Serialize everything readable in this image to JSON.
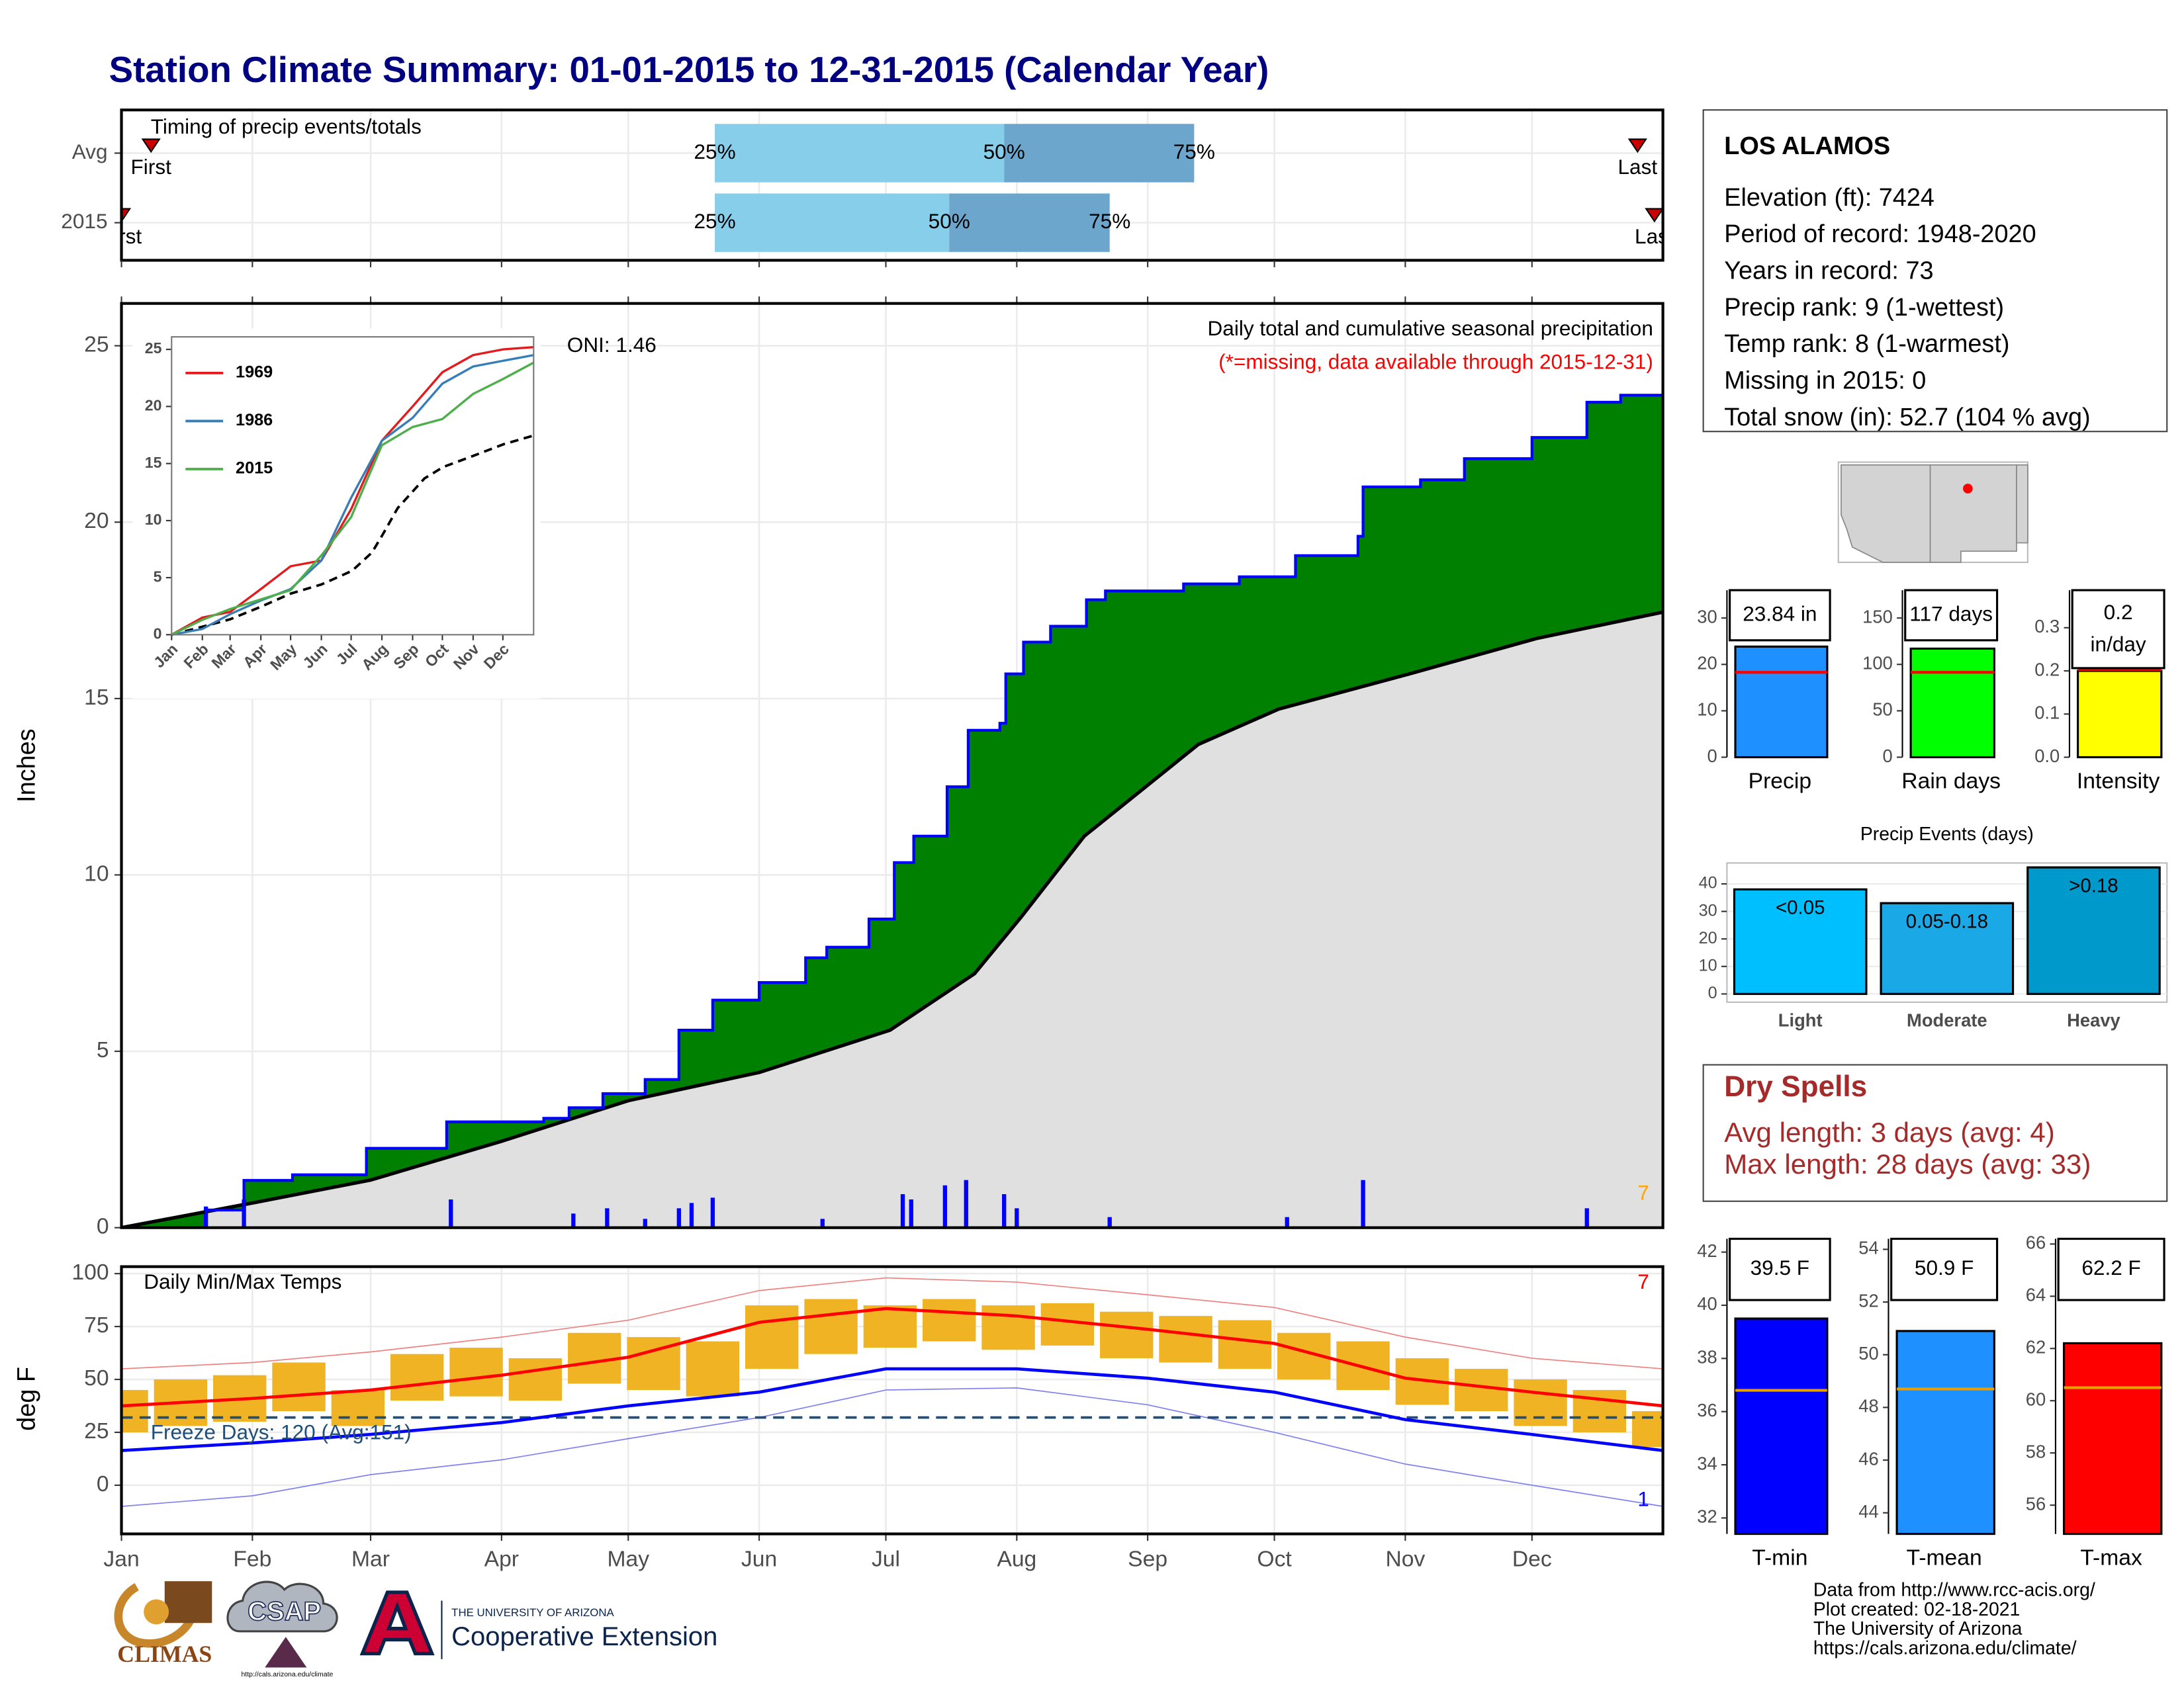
{
  "title": "Station Climate Summary: 01-01-2015 to 12-31-2015 (Calendar Year)",
  "info": {
    "station": "LOS ALAMOS",
    "lines": [
      "Elevation (ft): 7424",
      "Period of record: 1948-2020",
      "Years in record: 73",
      "Precip rank: 9 (1-wettest)",
      "Temp rank: 8 (1-warmest)",
      "Missing in 2015: 0",
      "Total snow (in): 52.7 (104 % avg)"
    ]
  },
  "dry_spells": {
    "title": "Dry Spells",
    "lines": [
      "Avg length: 3 days (avg: 4)",
      "Max length: 28 days (avg: 33)"
    ]
  },
  "footer": [
    "Data from http://www.rcc-acis.org/",
    "Plot created: 02-18-2021",
    "The University of Arizona",
    "https://cals.arizona.edu/climate/"
  ],
  "logos": {
    "climas": "CLIMAS",
    "csap": "CSAP",
    "csap_url": "http://cals.arizona.edu/climate",
    "university": "THE UNIVERSITY OF ARIZONA",
    "extension": "Cooperative Extension"
  },
  "chart_data": [
    {
      "type": "timing",
      "title": "Timing of precip events/totals",
      "xlim": [
        0,
        365
      ],
      "labels": {
        "first": "First",
        "last": "Last",
        "p25": "25%",
        "p50": "50%",
        "p75": "75%"
      },
      "colors": {
        "low": "#87ceeb",
        "high": "#6ca6cd",
        "marker": "#cc0000"
      },
      "series": [
        {
          "name": "Avg",
          "first": 7,
          "p25": 140.5,
          "p50": 209,
          "p75": 254,
          "last": 359
        },
        {
          "name": "2015",
          "first": 0,
          "p25": 140.5,
          "p50": 196,
          "p75": 234,
          "last": 363
        }
      ]
    },
    {
      "type": "area",
      "title": "Daily total and cumulative seasonal precipitation",
      "subtitle": "(*=missing, data available through 2015-12-31)",
      "annotation": "ONI: 1.46",
      "corner_note": "7",
      "ylabel": "Inches",
      "xlim": [
        0,
        365
      ],
      "ylim": [
        0,
        26.2
      ],
      "yticks": [
        0,
        5,
        10,
        15,
        20,
        25
      ],
      "current": {
        "color": "#0000ff",
        "fill": "#008000",
        "x": [
          0,
          20,
          29,
          40.5,
          58,
          77,
          100,
          106,
          114,
          124,
          132,
          140,
          151,
          162,
          167,
          177,
          183,
          187.6,
          195.5,
          200.5,
          208,
          209.4,
          213.6,
          220,
          228.5,
          233,
          251.5,
          264.7,
          278,
          292.8,
          294,
          307.6,
          318,
          334,
          347,
          355,
          365
        ],
        "values": [
          0,
          0.5,
          1.34,
          1.5,
          2.25,
          3.0,
          3.1,
          3.4,
          3.8,
          4.2,
          5.6,
          6.45,
          6.95,
          7.65,
          7.95,
          8.75,
          10.35,
          11.1,
          12.5,
          14.1,
          14.3,
          15.7,
          16.6,
          17.05,
          17.8,
          18.05,
          18.25,
          18.45,
          19.05,
          19.6,
          21.0,
          21.2,
          21.8,
          22.4,
          23.4,
          23.6,
          23.84
        ]
      },
      "average": {
        "color": "#000000",
        "fill": "#e0e0e0",
        "x": [
          0,
          31,
          59,
          90,
          120,
          151,
          182,
          202,
          213,
          228,
          255,
          274,
          305,
          335,
          365
        ],
        "values": [
          0,
          0.7,
          1.35,
          2.45,
          3.6,
          4.4,
          5.6,
          7.2,
          8.8,
          11.1,
          13.7,
          14.7,
          15.7,
          16.7,
          17.45
        ]
      },
      "daily": {
        "color": "#0000ff",
        "x": [
          20,
          29,
          78,
          107,
          115,
          124,
          132,
          135,
          140,
          166,
          185,
          187,
          195,
          200,
          209,
          212,
          234,
          276,
          294,
          347
        ],
        "values": [
          0.6,
          0.8,
          0.8,
          0.4,
          0.55,
          0.25,
          0.55,
          0.7,
          0.85,
          0.25,
          0.95,
          0.8,
          1.2,
          1.35,
          0.95,
          0.55,
          0.3,
          0.3,
          1.35,
          0.55
        ]
      }
    },
    {
      "type": "line",
      "xlim": [
        0,
        365
      ],
      "ylim": [
        0,
        26.1
      ],
      "yticks": [
        0,
        5,
        10,
        15,
        20,
        25
      ],
      "xticks": [
        {
          "value": 0,
          "label": "Jan"
        },
        {
          "value": 31,
          "label": "Feb"
        },
        {
          "value": 59,
          "label": "Mar"
        },
        {
          "value": 90,
          "label": "Apr"
        },
        {
          "value": 120,
          "label": "May"
        },
        {
          "value": 151,
          "label": "Jun"
        },
        {
          "value": 181,
          "label": "Jul"
        },
        {
          "value": 212,
          "label": "Aug"
        },
        {
          "value": 243,
          "label": "Sep"
        },
        {
          "value": 273,
          "label": "Oct"
        },
        {
          "value": 304,
          "label": "Nov"
        },
        {
          "value": 334,
          "label": "Dec"
        }
      ],
      "x": [
        0,
        31,
        59,
        90,
        120,
        151,
        181,
        212,
        243,
        273,
        304,
        334,
        365
      ],
      "series": [
        {
          "name": "1969",
          "color": "#e41a1c",
          "values": [
            0,
            1.5,
            2,
            4,
            6,
            6.5,
            11,
            17,
            20,
            23,
            24.5,
            25,
            25.2
          ]
        },
        {
          "name": "1986",
          "color": "#377eb8",
          "values": [
            0,
            0.5,
            1.8,
            3,
            4,
            6.5,
            12,
            17,
            19,
            22,
            23.5,
            24,
            24.5
          ]
        },
        {
          "name": "2015",
          "color": "#4daf4a",
          "values": [
            0,
            1.3,
            2.25,
            3.1,
            3.9,
            6.95,
            10.3,
            16.6,
            18.2,
            18.9,
            21.1,
            22.4,
            23.84
          ]
        }
      ]
    },
    {
      "type": "range",
      "title": "Daily Min/Max Temps",
      "ylabel": "deg F",
      "annotation": "Freeze Days: 120 (Avg:151)",
      "corner_high": "7",
      "corner_low": "1",
      "freeze": 32,
      "xlim": [
        0,
        365
      ],
      "ylim": [
        -23,
        103.3
      ],
      "yticks": [
        0,
        25,
        50,
        75,
        100
      ],
      "xticks": [
        {
          "value": 0,
          "label": "Jan"
        },
        {
          "value": 31,
          "label": "Feb"
        },
        {
          "value": 59,
          "label": "Mar"
        },
        {
          "value": 90,
          "label": "Apr"
        },
        {
          "value": 120,
          "label": "May"
        },
        {
          "value": 151,
          "label": "Jun"
        },
        {
          "value": 181,
          "label": "Jul"
        },
        {
          "value": 212,
          "label": "Aug"
        },
        {
          "value": 243,
          "label": "Sep"
        },
        {
          "value": 273,
          "label": "Oct"
        },
        {
          "value": 304,
          "label": "Nov"
        },
        {
          "value": 334,
          "label": "Dec"
        }
      ],
      "x": [
        0,
        31,
        59,
        90,
        120,
        151,
        181,
        212,
        243,
        273,
        304,
        334,
        365
      ],
      "avg_max": {
        "color": "#ff0000",
        "values": [
          37.5,
          41,
          45,
          52,
          60.5,
          77,
          83.5,
          80,
          73.7,
          67,
          50.6,
          44,
          37.5
        ]
      },
      "avg_min": {
        "color": "#0000ff",
        "values": [
          16.4,
          20,
          24,
          29.6,
          37.5,
          44,
          55,
          55,
          50.6,
          44,
          31,
          24,
          16.4
        ]
      },
      "rec_max": {
        "color": "#f08080",
        "values": [
          55,
          58,
          63,
          70,
          78,
          92,
          98,
          96,
          90,
          84,
          70,
          60,
          55
        ]
      },
      "rec_min": {
        "color": "#8080f0",
        "values": [
          -10,
          -5,
          5,
          12,
          22,
          32,
          45,
          46,
          38,
          25,
          10,
          0,
          -10
        ]
      },
      "freeze_color": "#1f4e79",
      "daily": {
        "color": "#f0b323",
        "x": [
          0,
          14,
          28,
          42,
          56,
          70,
          84,
          98,
          112,
          126,
          140,
          154,
          168,
          182,
          196,
          210,
          224,
          238,
          252,
          266,
          280,
          294,
          308,
          322,
          336,
          350,
          364
        ],
        "low": [
          25,
          28,
          30,
          35,
          28,
          40,
          42,
          40,
          48,
          45,
          42,
          55,
          62,
          65,
          68,
          64,
          66,
          60,
          58,
          55,
          50,
          45,
          38,
          35,
          28,
          25,
          18
        ],
        "high": [
          45,
          50,
          52,
          58,
          45,
          62,
          65,
          60,
          72,
          70,
          68,
          85,
          88,
          85,
          88,
          85,
          86,
          82,
          80,
          78,
          72,
          68,
          60,
          55,
          50,
          45,
          35
        ]
      }
    },
    {
      "type": "bar",
      "categories": [
        "Precip"
      ],
      "values": [
        23.84
      ],
      "value_labels": [
        "23.84 in"
      ],
      "average": 18.3,
      "color": "#1e90ff",
      "average_color": "#ff0000",
      "ylim": [
        0,
        36
      ],
      "yticks": [
        0,
        10,
        20,
        30
      ]
    },
    {
      "type": "bar",
      "categories": [
        "Rain days"
      ],
      "values": [
        117
      ],
      "value_labels": [
        "117 days"
      ],
      "average": 91.5,
      "color": "#00ff00",
      "average_color": "#ff0000",
      "ylim": [
        0,
        180
      ],
      "yticks": [
        0,
        50,
        100,
        150
      ]
    },
    {
      "type": "bar",
      "categories": [
        "Intensity"
      ],
      "values": [
        0.2
      ],
      "value_labels": [
        "0.2"
      ],
      "unit_label": "in/day",
      "average": 0.203,
      "color": "#ffff00",
      "average_color": "#ff0000",
      "ylim": [
        0,
        0.387
      ],
      "yticks": [
        {
          "value": 0,
          "label": "0.0"
        },
        0.1,
        0.2,
        0.3
      ]
    },
    {
      "type": "events",
      "title": "Precip Events (days)",
      "categories": [
        "Light",
        "Moderate",
        "Heavy"
      ],
      "values": [
        38,
        33,
        46
      ],
      "value_labels": [
        "<0.05",
        "0.05-0.18",
        ">0.18"
      ],
      "colors": [
        "#00bfff",
        "#1aa8e6",
        "#0099cc"
      ],
      "ylim": [
        -3,
        47.6
      ],
      "yticks": [
        0,
        10,
        20,
        30,
        40
      ]
    },
    {
      "type": "bar",
      "categories": [
        "T-min"
      ],
      "values": [
        39.5
      ],
      "value_labels": [
        "39.5 F"
      ],
      "average": 36.8,
      "color": "#0000ff",
      "average_color": "#e69f00",
      "ylim": [
        31.4,
        42.5
      ],
      "yticks": [
        32,
        34,
        36,
        38,
        40,
        42
      ]
    },
    {
      "type": "bar",
      "categories": [
        "T-mean"
      ],
      "values": [
        50.9
      ],
      "value_labels": [
        "50.9 F"
      ],
      "average": 48.7,
      "color": "#1e90ff",
      "average_color": "#e69f00",
      "ylim": [
        43.2,
        54.4
      ],
      "yticks": [
        44,
        46,
        48,
        50,
        52,
        54
      ]
    },
    {
      "type": "bar",
      "categories": [
        "T-max"
      ],
      "values": [
        62.2
      ],
      "value_labels": [
        "62.2 F"
      ],
      "average": 60.5,
      "color": "#ff0000",
      "average_color": "#e69f00",
      "ylim": [
        54.9,
        66.2
      ],
      "yticks": [
        56,
        58,
        60,
        62,
        64,
        66
      ]
    }
  ]
}
